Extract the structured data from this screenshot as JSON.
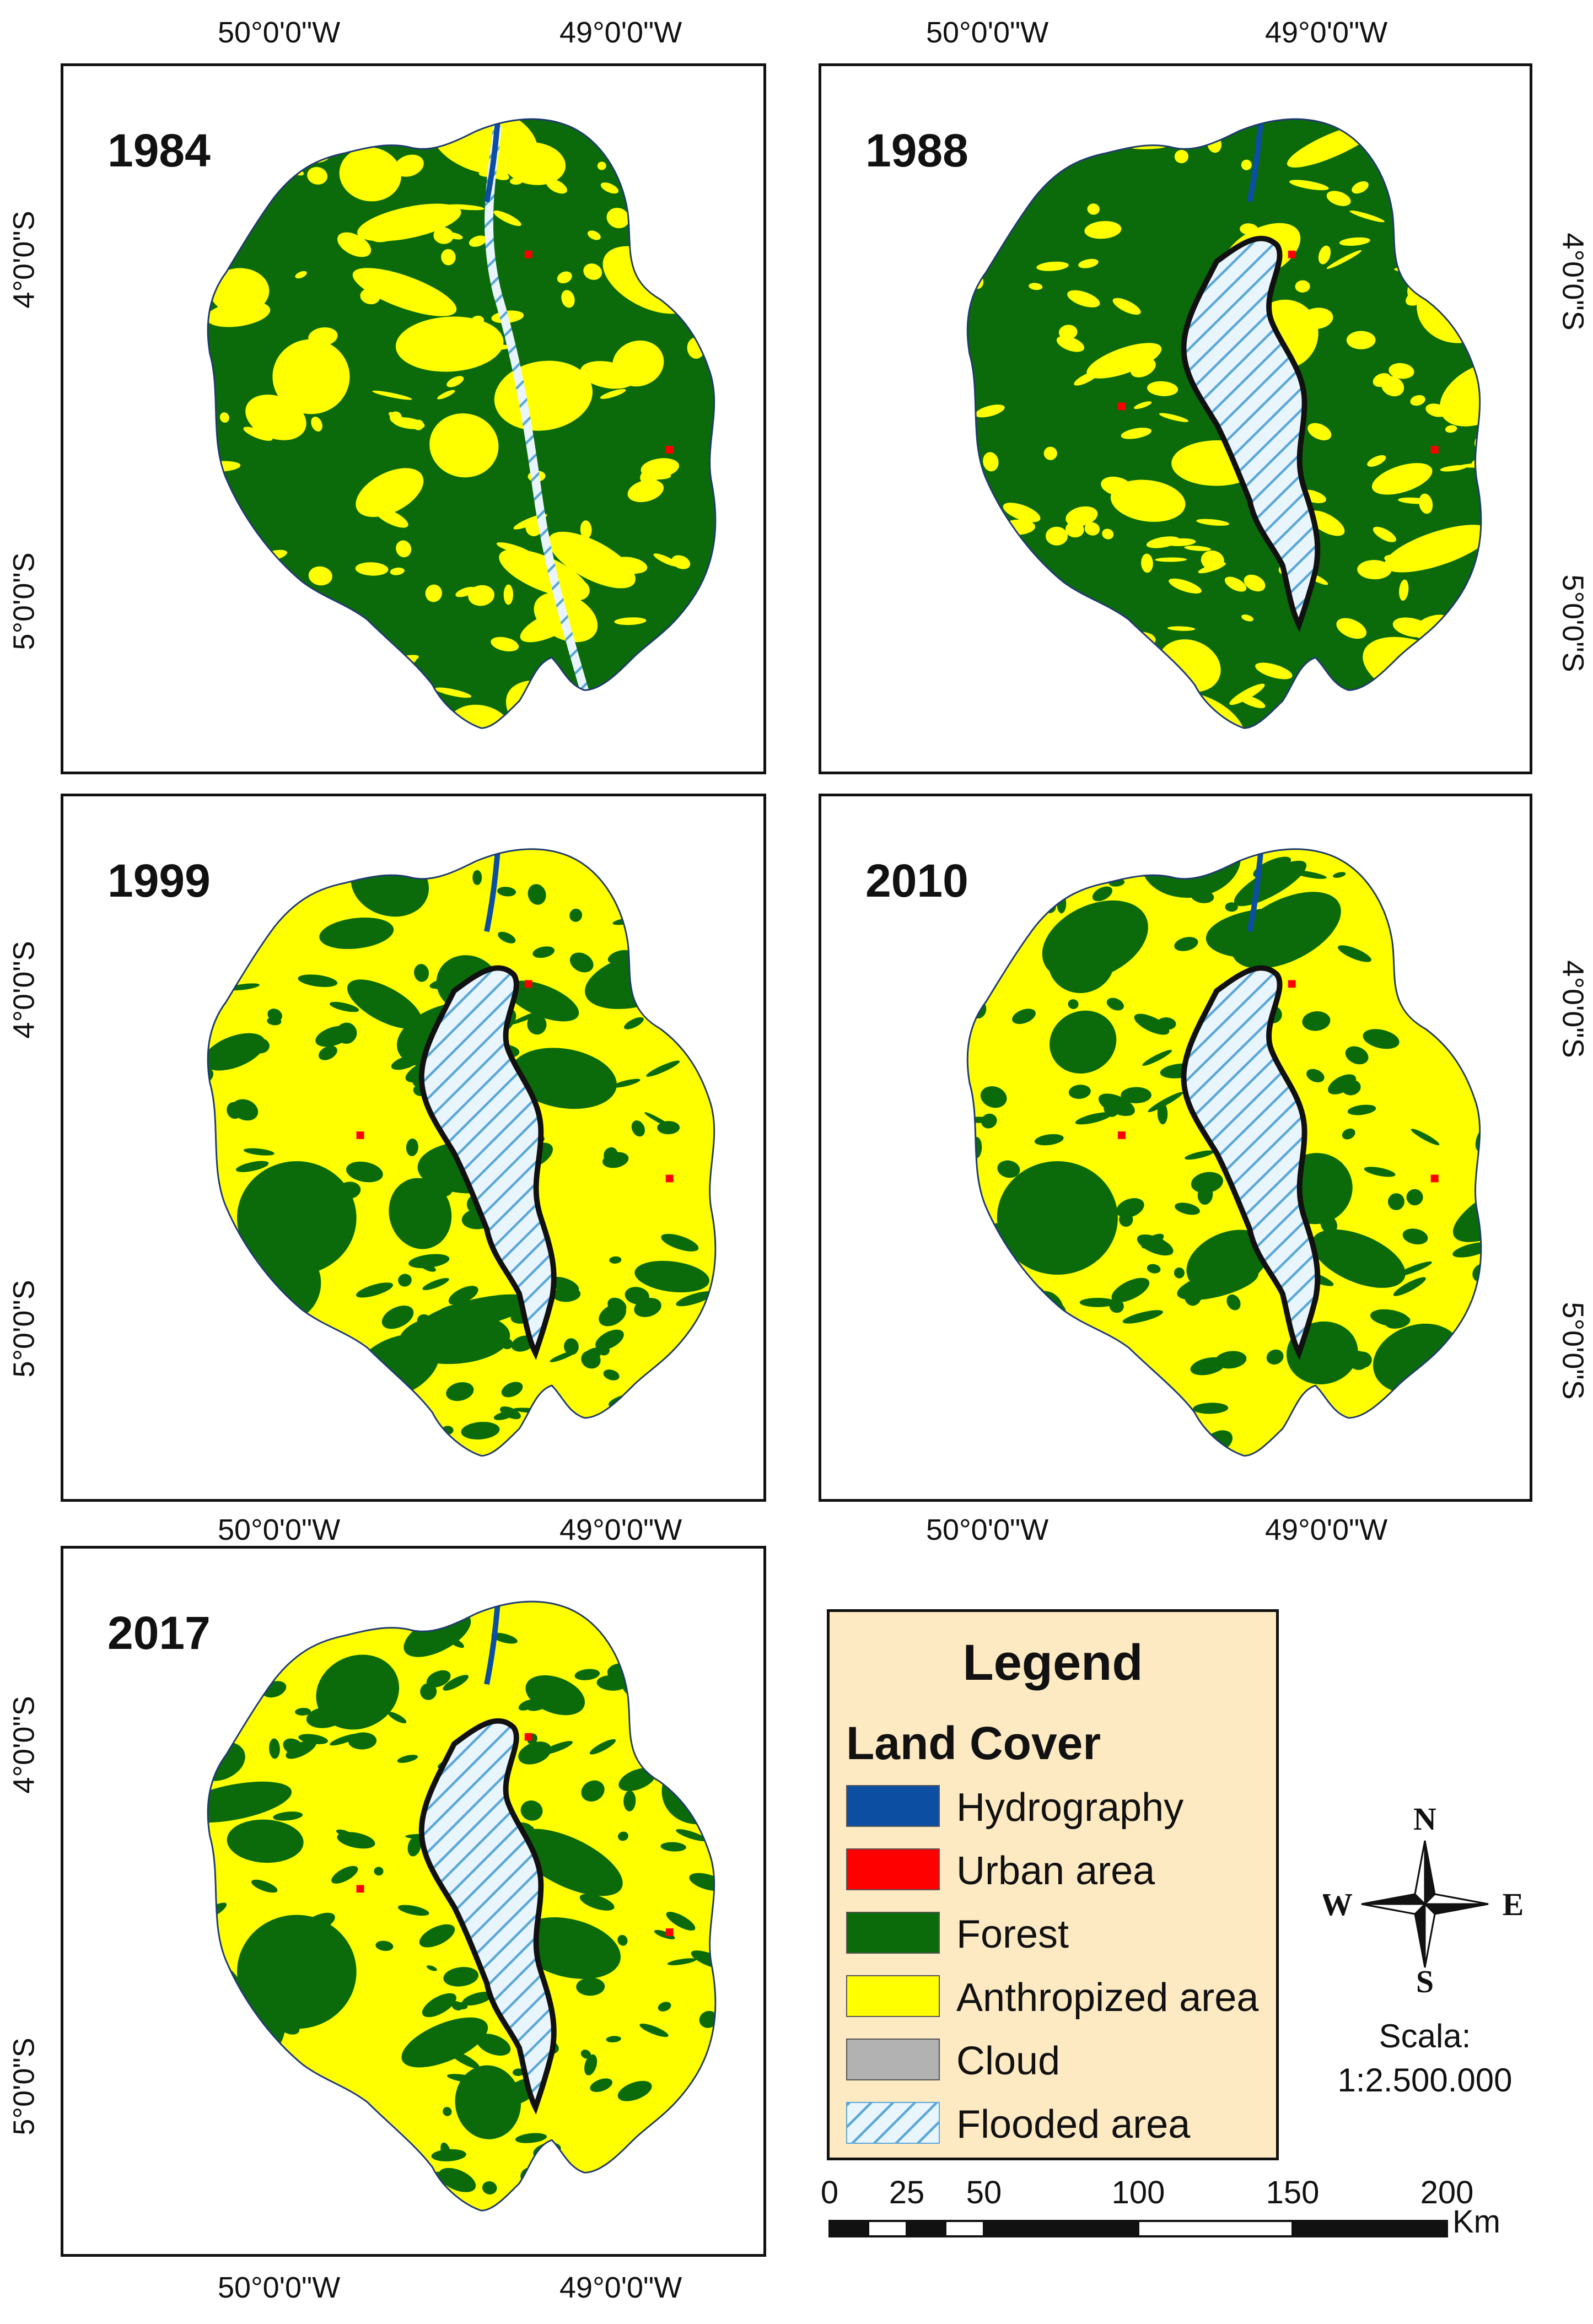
{
  "panels": [
    {
      "year": "1984",
      "flooded": false
    },
    {
      "year": "1988",
      "flooded": true
    },
    {
      "year": "1999",
      "flooded": true
    },
    {
      "year": "2010",
      "flooded": true
    },
    {
      "year": "2017",
      "flooded": true
    }
  ],
  "axes": {
    "lon_left": "50°0'0\"W",
    "lon_right": "49°0'0\"W",
    "lat_top": "4°0'0\"S",
    "lat_bottom": "5°0'0\"S"
  },
  "legend": {
    "title": "Legend",
    "subtitle": "Land Cover",
    "items": [
      {
        "label": "Hydrography",
        "color": "#0b4ea2"
      },
      {
        "label": "Urban area",
        "color": "#ff0000"
      },
      {
        "label": "Forest",
        "color": "#0b6b0b"
      },
      {
        "label": "Anthropized area",
        "color": "#ffff00"
      },
      {
        "label": "Cloud",
        "color": "#b2b2b2"
      },
      {
        "label": "Flooded area",
        "color": "#bfe3f5"
      }
    ]
  },
  "compass": {
    "n": "N",
    "s": "S",
    "e": "E",
    "w": "W"
  },
  "scale": {
    "label": "Scala:",
    "ratio": "1:2.500.000"
  },
  "scalebar": {
    "ticks": [
      "0",
      "25",
      "50",
      "100",
      "150",
      "200"
    ],
    "unit": "Km"
  },
  "colors": {
    "forest": "#0b6b0b",
    "anthropized": "#ffff00",
    "flooded": "#bfe3f5",
    "hatch": "#5aa7d8",
    "urban": "#ff0000",
    "hydro": "#0b4ea2",
    "legend_bg": "#fde9c2"
  }
}
